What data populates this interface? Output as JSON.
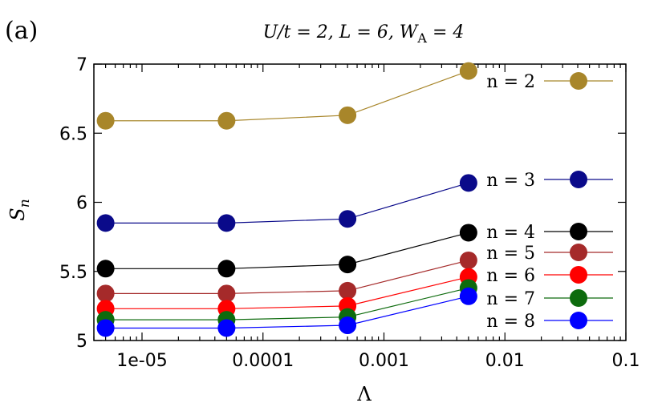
{
  "panel_label": "(a)",
  "title_text": "U/t = 2, L = 6, W_A = 4",
  "colors": {
    "n2": "#a8862a",
    "n3": "#0a0a8a",
    "n4": "#000000",
    "n5": "#a52a2a",
    "n6": "#ff0000",
    "n7": "#0d6b0d",
    "n8": "#0000ff"
  },
  "chart_data": {
    "type": "line",
    "title": "U/t = 2, L = 6, W_A = 4",
    "xlabel": "Λ",
    "ylabel": "S_n",
    "x_scale": "log",
    "xlim": [
      4e-06,
      0.1
    ],
    "ylim": [
      5,
      7
    ],
    "x_ticks": [
      {
        "value": 1e-05,
        "label": "1e-05"
      },
      {
        "value": 0.0001,
        "label": "0.0001"
      },
      {
        "value": 0.001,
        "label": "0.001"
      },
      {
        "value": 0.01,
        "label": "0.01"
      },
      {
        "value": 0.1,
        "label": "0.1"
      }
    ],
    "y_ticks": [
      {
        "value": 5,
        "label": "5"
      },
      {
        "value": 5.5,
        "label": "5.5"
      },
      {
        "value": 6,
        "label": "6"
      },
      {
        "value": 6.5,
        "label": "6.5"
      },
      {
        "value": 7,
        "label": "7"
      }
    ],
    "legend_position": "right",
    "x": [
      5e-06,
      5e-05,
      0.0005,
      0.005
    ],
    "series": [
      {
        "name": "n = 2",
        "color_key": "n2",
        "values": [
          6.59,
          6.59,
          6.63,
          6.95
        ]
      },
      {
        "name": "n = 3",
        "color_key": "n3",
        "values": [
          5.85,
          5.85,
          5.88,
          6.14
        ]
      },
      {
        "name": "n = 4",
        "color_key": "n4",
        "values": [
          5.52,
          5.52,
          5.55,
          5.78
        ]
      },
      {
        "name": "n = 5",
        "color_key": "n5",
        "values": [
          5.34,
          5.34,
          5.36,
          5.58
        ]
      },
      {
        "name": "n = 6",
        "color_key": "n6",
        "values": [
          5.23,
          5.23,
          5.25,
          5.46
        ]
      },
      {
        "name": "n = 7",
        "color_key": "n7",
        "values": [
          5.15,
          5.15,
          5.17,
          5.38
        ]
      },
      {
        "name": "n = 8",
        "color_key": "n8",
        "values": [
          5.09,
          5.09,
          5.11,
          5.32
        ]
      }
    ]
  }
}
